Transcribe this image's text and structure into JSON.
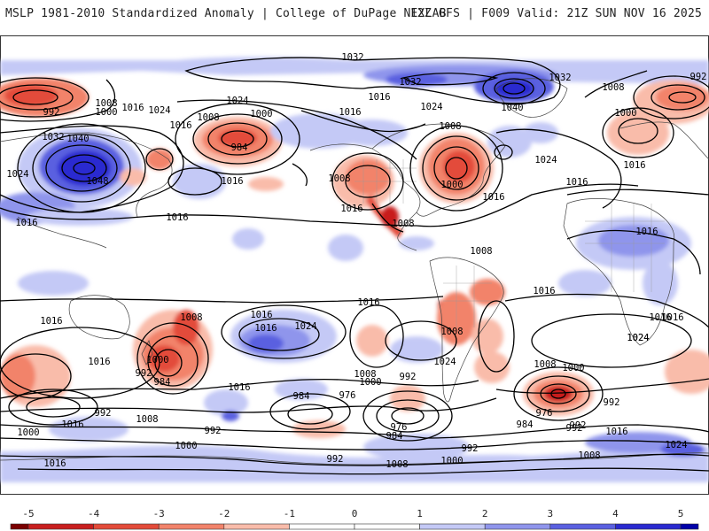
{
  "header": {
    "left_title": "MSLP 1981-2010 Standardized Anomaly | College of DuPage NEXLAB",
    "right_title": "12Z GFS | F009 Valid: 21Z SUN NOV 16 2025"
  },
  "colorbar": {
    "ticks": [
      "-5",
      "-4",
      "-3",
      "-2",
      "-1",
      "0",
      "1",
      "2",
      "3",
      "4",
      "5"
    ],
    "colors": [
      "#7a0000",
      "#c81e1e",
      "#e34b3a",
      "#f2836b",
      "#f9bcaa",
      "#ffffff",
      "#ffffff",
      "#c4c9f6",
      "#8f95ec",
      "#5a60e0",
      "#2a2ad0",
      "#0000a8"
    ]
  },
  "isobar_labels": [
    {
      "id": "iso-1032-top",
      "text": "1032"
    },
    {
      "id": "iso-992-nw",
      "text": "992"
    },
    {
      "id": "iso-1000-nw",
      "text": "1000"
    },
    {
      "id": "iso-1008-nw",
      "text": "1008"
    },
    {
      "id": "iso-1016-nw",
      "text": "1016"
    },
    {
      "id": "iso-1024-nw",
      "text": "1024"
    },
    {
      "id": "iso-1032-asia",
      "text": "1032"
    },
    {
      "id": "iso-1040-asia",
      "text": "1040"
    },
    {
      "id": "iso-1048-asia",
      "text": "1048"
    },
    {
      "id": "iso-1024-asia-w",
      "text": "1024"
    },
    {
      "id": "iso-1016-asia-w",
      "text": "1016"
    },
    {
      "id": "iso-1016-nwpac",
      "text": "1016"
    },
    {
      "id": "iso-1008-npac",
      "text": "1008"
    },
    {
      "id": "iso-1024-npac",
      "text": "1024"
    },
    {
      "id": "iso-1000-npac",
      "text": "1000"
    },
    {
      "id": "iso-984-npac",
      "text": "984"
    },
    {
      "id": "iso-1016-pac",
      "text": "1016"
    },
    {
      "id": "iso-1016-pac-c",
      "text": "1016"
    },
    {
      "id": "iso-1016-ak",
      "text": "1016"
    },
    {
      "id": "iso-1016-can",
      "text": "1016"
    },
    {
      "id": "iso-1032-arc",
      "text": "1032"
    },
    {
      "id": "iso-1024-can",
      "text": "1024"
    },
    {
      "id": "iso-1040-grl",
      "text": "1040"
    },
    {
      "id": "iso-1032-grl",
      "text": "1032"
    },
    {
      "id": "iso-1008-ecan",
      "text": "1008"
    },
    {
      "id": "iso-1008-rockies",
      "text": "1008"
    },
    {
      "id": "iso-1016-sw",
      "text": "1016"
    },
    {
      "id": "iso-1000-ne",
      "text": "1000"
    },
    {
      "id": "iso-1016-atl",
      "text": "1016"
    },
    {
      "id": "iso-1024-atl",
      "text": "1024"
    },
    {
      "id": "iso-1016-eatl",
      "text": "1016"
    },
    {
      "id": "iso-1008-eur",
      "text": "1008"
    },
    {
      "id": "iso-992-eur",
      "text": "992"
    },
    {
      "id": "iso-1000-eur",
      "text": "1000"
    },
    {
      "id": "iso-1016-eur",
      "text": "1016"
    },
    {
      "id": "iso-1008-mex",
      "text": "1008"
    },
    {
      "id": "iso-1008-carib",
      "text": "1008"
    },
    {
      "id": "iso-1016-africa",
      "text": "1016"
    },
    {
      "id": "iso-1016-satl",
      "text": "1016"
    },
    {
      "id": "iso-1016-spac",
      "text": "1016"
    },
    {
      "id": "iso-1008-sam",
      "text": "1008"
    },
    {
      "id": "iso-1016-io",
      "text": "1016"
    },
    {
      "id": "iso-1024-io",
      "text": "1024"
    },
    {
      "id": "iso-1016-sio",
      "text": "1016"
    },
    {
      "id": "iso-1016-aus",
      "text": "1016"
    },
    {
      "id": "iso-1008-aus",
      "text": "1008"
    },
    {
      "id": "iso-1016-tas",
      "text": "1016"
    },
    {
      "id": "iso-1000-tas",
      "text": "1000"
    },
    {
      "id": "iso-992-tas",
      "text": "992"
    },
    {
      "id": "iso-984-tas",
      "text": "984"
    },
    {
      "id": "iso-1016-spac2",
      "text": "1016"
    },
    {
      "id": "iso-1024-spac",
      "text": "1024"
    },
    {
      "id": "iso-1016-spac-c",
      "text": "1016"
    },
    {
      "id": "iso-984-so",
      "text": "984"
    },
    {
      "id": "iso-976-so",
      "text": "976"
    },
    {
      "id": "iso-1008-so",
      "text": "1008"
    },
    {
      "id": "iso-1000-so",
      "text": "1000"
    },
    {
      "id": "iso-992-so",
      "text": "992"
    },
    {
      "id": "iso-1024-patag",
      "text": "1024"
    },
    {
      "id": "iso-976-drake",
      "text": "976"
    },
    {
      "id": "iso-984-drake",
      "text": "984"
    },
    {
      "id": "iso-992-drake",
      "text": "992"
    },
    {
      "id": "iso-1008-satl2",
      "text": "1008"
    },
    {
      "id": "iso-1000-satl",
      "text": "1000"
    },
    {
      "id": "iso-976-sio",
      "text": "976"
    },
    {
      "id": "iso-984-sio",
      "text": "984"
    },
    {
      "id": "iso-992-sio",
      "text": "992"
    },
    {
      "id": "iso-992-sio2",
      "text": "992"
    },
    {
      "id": "iso-1016-ant",
      "text": "1016"
    },
    {
      "id": "iso-1024-ant",
      "text": "1024"
    },
    {
      "id": "iso-1024-safr",
      "text": "1024"
    },
    {
      "id": "iso-1016-safr",
      "text": "1016"
    },
    {
      "id": "iso-992-sw",
      "text": "992"
    },
    {
      "id": "iso-1000-sw",
      "text": "1000"
    },
    {
      "id": "iso-1016-sw2",
      "text": "1016"
    },
    {
      "id": "iso-1008-sw",
      "text": "1008"
    },
    {
      "id": "iso-992-sc",
      "text": "992"
    },
    {
      "id": "iso-1000-sc",
      "text": "1000"
    },
    {
      "id": "iso-1016-bot",
      "text": "1016"
    },
    {
      "id": "iso-992-bot",
      "text": "992"
    },
    {
      "id": "iso-1008-bot",
      "text": "1008"
    },
    {
      "id": "iso-1000-bot",
      "text": "1000"
    },
    {
      "id": "iso-992-bot2",
      "text": "992"
    },
    {
      "id": "iso-1008-bot2",
      "text": "1008"
    }
  ]
}
